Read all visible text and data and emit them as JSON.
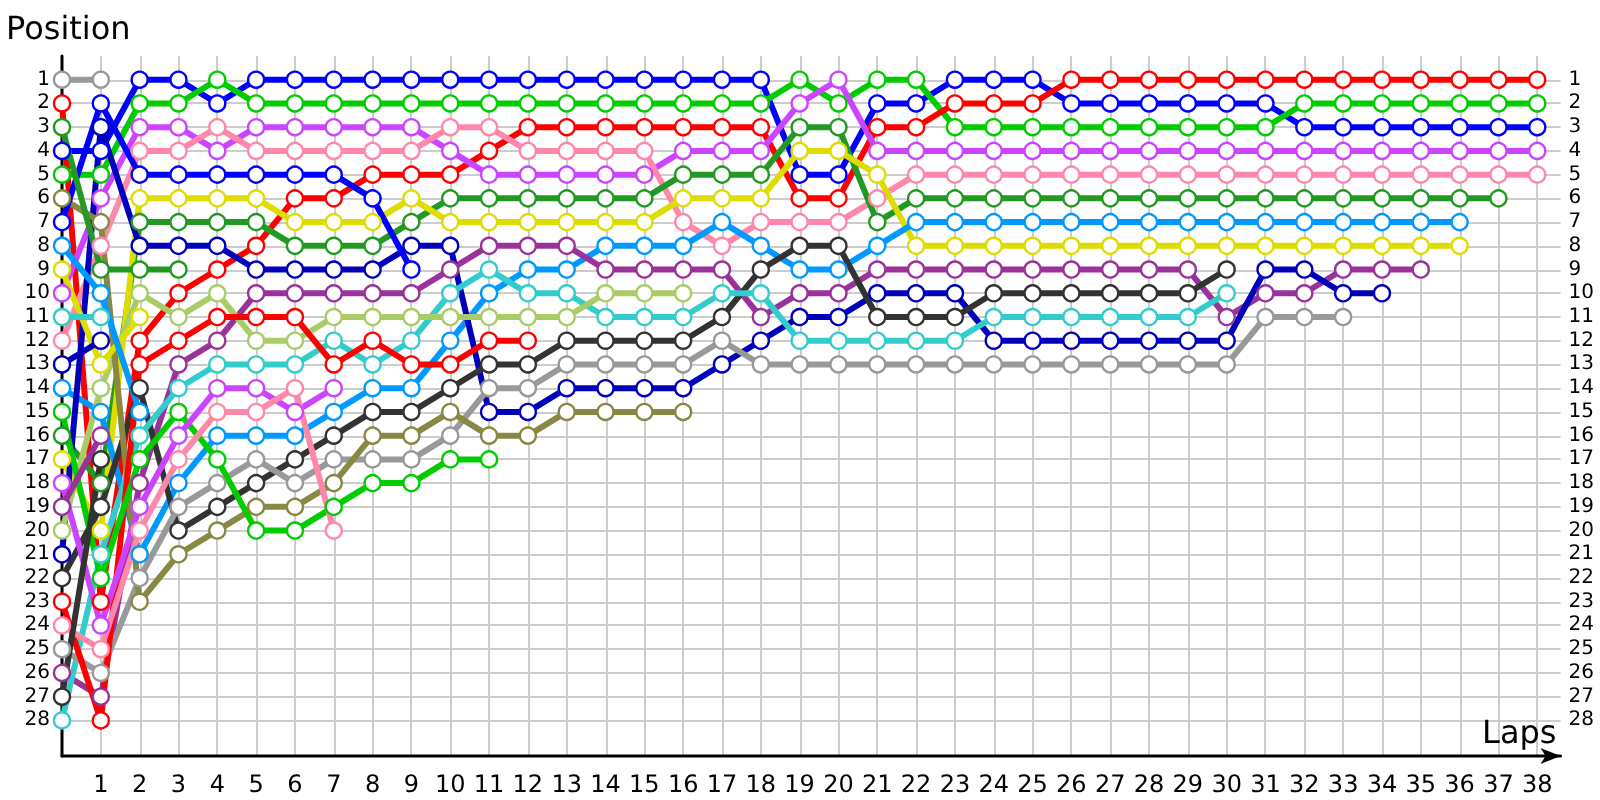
{
  "chart_data": {
    "type": "line",
    "xlabel": "Laps",
    "ylabel": "Position",
    "marker": "circle",
    "line_style": "solid",
    "grid": true,
    "x": [
      0,
      1,
      2,
      3,
      4,
      5,
      6,
      7,
      8,
      9,
      10,
      11,
      12,
      13,
      14,
      15,
      16,
      17,
      18,
      19,
      20,
      21,
      22,
      23,
      24,
      25,
      26,
      27,
      28,
      29,
      30,
      31,
      32,
      33,
      34,
      35,
      36,
      37,
      38
    ],
    "xlim": [
      0,
      38.6
    ],
    "xticks": [
      1,
      2,
      3,
      4,
      5,
      6,
      7,
      8,
      9,
      10,
      11,
      12,
      13,
      14,
      15,
      16,
      17,
      18,
      19,
      20,
      21,
      22,
      23,
      24,
      25,
      26,
      27,
      28,
      29,
      30,
      31,
      32,
      33,
      34,
      35,
      36,
      37,
      38
    ],
    "ylim": [
      29.5,
      0
    ],
    "yticks": [
      1,
      2,
      3,
      4,
      5,
      6,
      7,
      8,
      9,
      10,
      11,
      12,
      13,
      14,
      15,
      16,
      17,
      18,
      19,
      20,
      21,
      22,
      23,
      24,
      25,
      26,
      27,
      28
    ],
    "y2lim": [
      29.5,
      0
    ],
    "y2ticks": [
      1,
      2,
      3,
      4,
      5,
      6,
      7,
      8,
      9,
      10,
      11,
      12,
      13,
      14,
      15,
      16,
      17,
      18,
      19,
      20,
      21,
      22,
      23,
      24,
      25,
      26,
      27,
      28
    ],
    "series": [
      {
        "color": "#0000ff",
        "values": [
          4,
          4,
          1,
          1,
          2,
          1,
          1,
          1,
          1,
          1,
          1,
          1,
          1,
          1,
          1,
          1,
          1,
          1,
          1,
          5,
          5,
          2,
          2,
          1,
          1,
          1,
          2,
          2,
          2,
          2,
          2,
          2,
          3,
          3,
          3,
          3,
          3,
          3,
          3
        ]
      },
      {
        "color": "#00cc00",
        "values": [
          5,
          5,
          2,
          2,
          1,
          2,
          2,
          2,
          2,
          2,
          2,
          2,
          2,
          2,
          2,
          2,
          2,
          2,
          2,
          1,
          2,
          1,
          1,
          3,
          3,
          3,
          3,
          3,
          3,
          3,
          3,
          3,
          2,
          2,
          2,
          2,
          2,
          2,
          2
        ]
      },
      {
        "color": "#ff0000",
        "values": [
          2,
          23,
          12,
          10,
          9,
          8,
          6,
          6,
          5,
          5,
          5,
          4,
          3,
          3,
          3,
          3,
          3,
          3,
          3,
          6,
          6,
          3,
          3,
          2,
          2,
          2,
          1,
          1,
          1,
          1,
          1,
          1,
          1,
          1,
          1,
          1,
          1,
          1,
          1
        ]
      },
      {
        "color": "#cc44ff",
        "values": [
          10,
          6,
          3,
          3,
          4,
          3,
          3,
          3,
          3,
          3,
          4,
          5,
          5,
          5,
          5,
          5,
          4,
          4,
          4,
          2,
          1,
          4,
          4,
          4,
          4,
          4,
          4,
          4,
          4,
          4,
          4,
          4,
          4,
          4,
          4,
          4,
          4,
          4,
          4
        ]
      },
      {
        "color": "#ff88aa",
        "values": [
          12,
          8,
          4,
          4,
          3,
          4,
          4,
          4,
          4,
          4,
          3,
          3,
          4,
          4,
          4,
          4,
          7,
          8,
          7,
          7,
          7,
          6,
          5,
          5,
          5,
          5,
          5,
          5,
          5,
          5,
          5,
          5,
          5,
          5,
          5,
          5,
          5,
          5,
          5
        ]
      },
      {
        "color": "#229922",
        "values": [
          16,
          18,
          7,
          7,
          7,
          7,
          8,
          8,
          8,
          7,
          6,
          6,
          6,
          6,
          6,
          6,
          5,
          5,
          5,
          3,
          3,
          7,
          6,
          6,
          6,
          6,
          6,
          6,
          6,
          6,
          6,
          6,
          6,
          6,
          6,
          6,
          6,
          6,
          null
        ]
      },
      {
        "color": "#dddd00",
        "values": [
          17,
          20,
          6,
          6,
          6,
          6,
          7,
          7,
          7,
          6,
          7,
          7,
          7,
          7,
          7,
          7,
          6,
          6,
          6,
          4,
          4,
          5,
          8,
          8,
          8,
          8,
          8,
          8,
          8,
          8,
          8,
          8,
          8,
          8,
          8,
          8,
          8,
          null,
          null
        ]
      },
      {
        "color": "#0099ff",
        "values": [
          14,
          15,
          21,
          18,
          16,
          16,
          16,
          15,
          14,
          14,
          12,
          10,
          9,
          9,
          8,
          8,
          8,
          7,
          8,
          9,
          9,
          8,
          7,
          7,
          7,
          7,
          7,
          7,
          7,
          7,
          7,
          7,
          7,
          7,
          7,
          7,
          7,
          null,
          null
        ]
      },
      {
        "color": "#993399",
        "values": [
          26,
          27,
          18,
          13,
          12,
          10,
          10,
          10,
          10,
          10,
          9,
          8,
          8,
          8,
          9,
          9,
          9,
          9,
          11,
          10,
          10,
          9,
          9,
          9,
          9,
          9,
          9,
          9,
          9,
          9,
          11,
          10,
          10,
          9,
          9,
          9,
          null,
          null,
          null
        ]
      },
      {
        "color": "#0000bb",
        "values": [
          21,
          3,
          8,
          8,
          8,
          9,
          9,
          9,
          9,
          8,
          8,
          15,
          15,
          14,
          14,
          14,
          14,
          13,
          12,
          11,
          11,
          10,
          10,
          10,
          12,
          12,
          12,
          12,
          12,
          12,
          12,
          9,
          9,
          10,
          10,
          null,
          null,
          null,
          null
        ]
      },
      {
        "color": "#333333",
        "values": [
          22,
          19,
          14,
          20,
          19,
          18,
          17,
          16,
          15,
          15,
          14,
          13,
          13,
          12,
          12,
          12,
          12,
          11,
          9,
          8,
          8,
          11,
          11,
          11,
          10,
          10,
          10,
          10,
          10,
          10,
          9,
          null,
          null,
          null,
          null,
          null,
          null,
          null,
          null
        ]
      },
      {
        "color": "#33cccc",
        "values": [
          28,
          21,
          16,
          14,
          13,
          13,
          13,
          12,
          13,
          12,
          10,
          9,
          10,
          10,
          11,
          11,
          11,
          10,
          10,
          12,
          12,
          12,
          12,
          12,
          11,
          11,
          11,
          11,
          11,
          11,
          10,
          null,
          null,
          null,
          null,
          null,
          null,
          null,
          null
        ]
      },
      {
        "color": "#999999",
        "values": [
          25,
          26,
          22,
          19,
          18,
          17,
          18,
          17,
          17,
          17,
          16,
          14,
          14,
          13,
          13,
          13,
          13,
          12,
          13,
          13,
          13,
          13,
          13,
          13,
          13,
          13,
          13,
          13,
          13,
          13,
          13,
          11,
          11,
          11,
          null,
          null,
          null,
          null,
          null
        ]
      },
      {
        "color": "#aacc66",
        "values": [
          20,
          14,
          10,
          11,
          10,
          12,
          12,
          11,
          11,
          11,
          11,
          11,
          11,
          11,
          10,
          10,
          10,
          null,
          null,
          null,
          null,
          null,
          null,
          null,
          null,
          null,
          null,
          null,
          null,
          null,
          null,
          null,
          null,
          null,
          null,
          null,
          null,
          null,
          null
        ]
      },
      {
        "color": "#888844",
        "values": [
          6,
          7,
          23,
          21,
          20,
          19,
          19,
          18,
          16,
          16,
          15,
          16,
          16,
          15,
          15,
          15,
          15,
          null,
          null,
          null,
          null,
          null,
          null,
          null,
          null,
          null,
          null,
          null,
          null,
          null,
          null,
          null,
          null,
          null,
          null,
          null,
          null,
          null,
          null
        ]
      },
      {
        "color": "#ff0000",
        "values": [
          23,
          28,
          13,
          12,
          11,
          11,
          11,
          13,
          12,
          13,
          13,
          12,
          12,
          null,
          null,
          null,
          null,
          null,
          null,
          null,
          null,
          null,
          null,
          null,
          null,
          null,
          null,
          null,
          null,
          null,
          null,
          null,
          null,
          null,
          null,
          null,
          null,
          null,
          null
        ]
      },
      {
        "color": "#00cc00",
        "values": [
          15,
          22,
          17,
          15,
          17,
          20,
          20,
          19,
          18,
          18,
          17,
          17,
          null,
          null,
          null,
          null,
          null,
          null,
          null,
          null,
          null,
          null,
          null,
          null,
          null,
          null,
          null,
          null,
          null,
          null,
          null,
          null,
          null,
          null,
          null,
          null,
          null,
          null,
          null
        ]
      },
      {
        "color": "#0000ff",
        "values": [
          7,
          2,
          5,
          5,
          5,
          5,
          5,
          5,
          6,
          9,
          null,
          null,
          null,
          null,
          null,
          null,
          null,
          null,
          null,
          null,
          null,
          null,
          null,
          null,
          null,
          null,
          null,
          null,
          null,
          null,
          null,
          null,
          null,
          null,
          null,
          null,
          null,
          null,
          null
        ]
      },
      {
        "color": "#cc44ff",
        "values": [
          18,
          24,
          19,
          16,
          14,
          14,
          15,
          14,
          null,
          null,
          null,
          null,
          null,
          null,
          null,
          null,
          null,
          null,
          null,
          null,
          null,
          null,
          null,
          null,
          null,
          null,
          null,
          null,
          null,
          null,
          null,
          null,
          null,
          null,
          null,
          null,
          null,
          null,
          null
        ]
      },
      {
        "color": "#ff88aa",
        "values": [
          24,
          25,
          20,
          17,
          15,
          15,
          14,
          20,
          null,
          null,
          null,
          null,
          null,
          null,
          null,
          null,
          null,
          null,
          null,
          null,
          null,
          null,
          null,
          null,
          null,
          null,
          null,
          null,
          null,
          null,
          null,
          null,
          null,
          null,
          null,
          null,
          null,
          null,
          null
        ]
      },
      {
        "color": "#229922",
        "values": [
          3,
          9,
          9,
          9,
          null,
          null,
          null,
          null,
          null,
          null,
          null,
          null,
          null,
          null,
          null,
          null,
          null,
          null,
          null,
          null,
          null,
          null,
          null,
          null,
          null,
          null,
          null,
          null,
          null,
          null,
          null,
          null,
          null,
          null,
          null,
          null,
          null,
          null,
          null
        ]
      },
      {
        "color": "#dddd00",
        "values": [
          9,
          13,
          11,
          null,
          null,
          null,
          null,
          null,
          null,
          null,
          null,
          null,
          null,
          null,
          null,
          null,
          null,
          null,
          null,
          null,
          null,
          null,
          null,
          null,
          null,
          null,
          null,
          null,
          null,
          null,
          null,
          null,
          null,
          null,
          null,
          null,
          null,
          null,
          null
        ]
      },
      {
        "color": "#0099ff",
        "values": [
          8,
          10,
          15,
          null,
          null,
          null,
          null,
          null,
          null,
          null,
          null,
          null,
          null,
          null,
          null,
          null,
          null,
          null,
          null,
          null,
          null,
          null,
          null,
          null,
          null,
          null,
          null,
          null,
          null,
          null,
          null,
          null,
          null,
          null,
          null,
          null,
          null,
          null,
          null
        ]
      },
      {
        "color": "#999999",
        "values": [
          1,
          1,
          null,
          null,
          null,
          null,
          null,
          null,
          null,
          null,
          null,
          null,
          null,
          null,
          null,
          null,
          null,
          null,
          null,
          null,
          null,
          null,
          null,
          null,
          null,
          null,
          null,
          null,
          null,
          null,
          null,
          null,
          null,
          null,
          null,
          null,
          null,
          null,
          null
        ]
      },
      {
        "color": "#33cccc",
        "values": [
          11,
          11,
          null,
          null,
          null,
          null,
          null,
          null,
          null,
          null,
          null,
          null,
          null,
          null,
          null,
          null,
          null,
          null,
          null,
          null,
          null,
          null,
          null,
          null,
          null,
          null,
          null,
          null,
          null,
          null,
          null,
          null,
          null,
          null,
          null,
          null,
          null,
          null,
          null
        ]
      },
      {
        "color": "#0000bb",
        "values": [
          13,
          12,
          null,
          null,
          null,
          null,
          null,
          null,
          null,
          null,
          null,
          null,
          null,
          null,
          null,
          null,
          null,
          null,
          null,
          null,
          null,
          null,
          null,
          null,
          null,
          null,
          null,
          null,
          null,
          null,
          null,
          null,
          null,
          null,
          null,
          null,
          null,
          null,
          null
        ]
      },
      {
        "color": "#993399",
        "values": [
          19,
          16,
          null,
          null,
          null,
          null,
          null,
          null,
          null,
          null,
          null,
          null,
          null,
          null,
          null,
          null,
          null,
          null,
          null,
          null,
          null,
          null,
          null,
          null,
          null,
          null,
          null,
          null,
          null,
          null,
          null,
          null,
          null,
          null,
          null,
          null,
          null,
          null,
          null
        ]
      },
      {
        "color": "#333333",
        "values": [
          27,
          17,
          null,
          null,
          null,
          null,
          null,
          null,
          null,
          null,
          null,
          null,
          null,
          null,
          null,
          null,
          null,
          null,
          null,
          null,
          null,
          null,
          null,
          null,
          null,
          null,
          null,
          null,
          null,
          null,
          null,
          null,
          null,
          null,
          null,
          null,
          null,
          null,
          null
        ]
      }
    ]
  }
}
